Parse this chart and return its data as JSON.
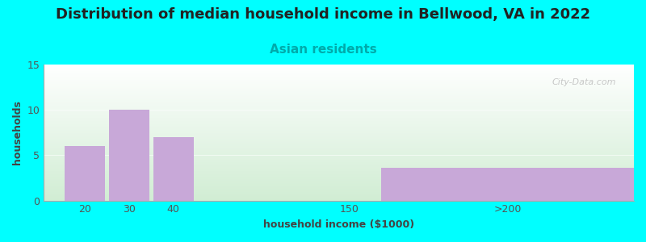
{
  "title": "Distribution of median household income in Bellwood, VA in 2022",
  "subtitle": "Asian residents",
  "xlabel": "household income ($1000)",
  "ylabel": "households",
  "background_color": "#00FFFF",
  "bar_color": "#c8a8d8",
  "values": [
    6,
    10,
    7,
    0,
    3.6
  ],
  "ylim": [
    0,
    15
  ],
  "yticks": [
    0,
    5,
    10,
    15
  ],
  "title_fontsize": 13,
  "subtitle_fontsize": 11,
  "subtitle_color": "#00AAAA",
  "axis_label_fontsize": 9,
  "tick_fontsize": 9,
  "watermark": "City-Data.com",
  "xlim": [
    -0.5,
    13.5
  ],
  "bar_lefts": [
    0.0,
    1.05,
    2.1,
    6.5,
    7.5
  ],
  "bar_widths": [
    0.95,
    0.95,
    0.95,
    0.0,
    6.0
  ],
  "tick_positions": [
    0.475,
    1.525,
    2.575,
    6.75,
    10.5
  ],
  "tick_labels": [
    "20",
    "30",
    "40",
    "150",
    ">200"
  ],
  "hline_y": [
    5,
    10
  ],
  "hline_color": "white",
  "hline_alpha": 0.6
}
